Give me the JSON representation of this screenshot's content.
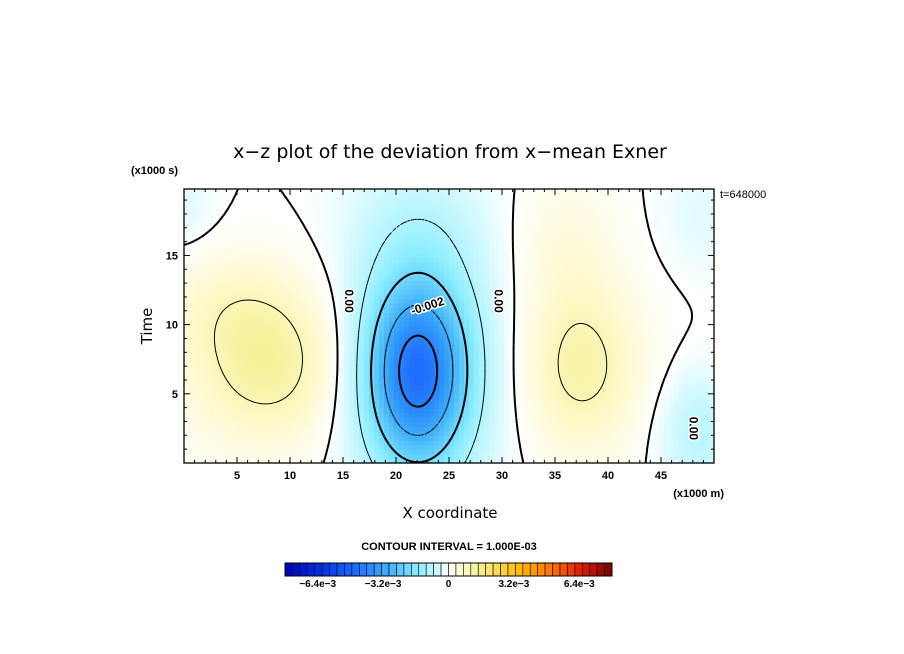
{
  "chart_data": {
    "type": "heatmap",
    "title": "x−z plot of the deviation from x−mean Exner",
    "xlabel": "X coordinate",
    "ylabel": "Time",
    "x_unit": "(x1000 m)",
    "y_unit": "(x1000 s)",
    "time_stamp": "t=648000",
    "xlim": [
      0,
      50
    ],
    "ylim": [
      0,
      19.8
    ],
    "x_ticks": [
      5,
      10,
      15,
      20,
      25,
      30,
      35,
      40,
      45
    ],
    "y_ticks": [
      5,
      10,
      15
    ],
    "contour_interval_label": "CONTOUR INTERVAL = 1.000E-03",
    "colorbar": {
      "range": [
        -0.008,
        0.008
      ],
      "tick_labels": [
        "−6.4e−3",
        "−3.2e−3",
        "0",
        "3.2e−3",
        "6.4e−3"
      ],
      "tick_values": [
        -0.0064,
        -0.0032,
        0,
        0.0032,
        0.0064
      ],
      "colors": {
        "deep_blue": "#0000b4",
        "blue": "#1e6eff",
        "cyan": "#8ceeff",
        "white": "#ffffff",
        "yellow": "#f5f0a0",
        "orange": "#ff9600",
        "red": "#c80000",
        "dark_red": "#780000"
      }
    },
    "features": [
      {
        "label": "minimum",
        "x": 22.0,
        "y": 6.5,
        "value": -0.0045
      },
      {
        "label": "positive lobe left",
        "x": 8.0,
        "y": 7.0,
        "value": 0.0012
      },
      {
        "label": "positive lobe right",
        "x": 38.0,
        "y": 7.0,
        "value": 0.0011
      }
    ],
    "contour_labels": [
      {
        "text": "0.00",
        "x": 15.5,
        "y": 11.7
      },
      {
        "text": "-0.002",
        "x": 23.0,
        "y": 11.3
      },
      {
        "text": "0.00",
        "x": 29.6,
        "y": 11.7
      },
      {
        "text": "0.00",
        "x": 48.0,
        "y": 2.5
      }
    ]
  }
}
